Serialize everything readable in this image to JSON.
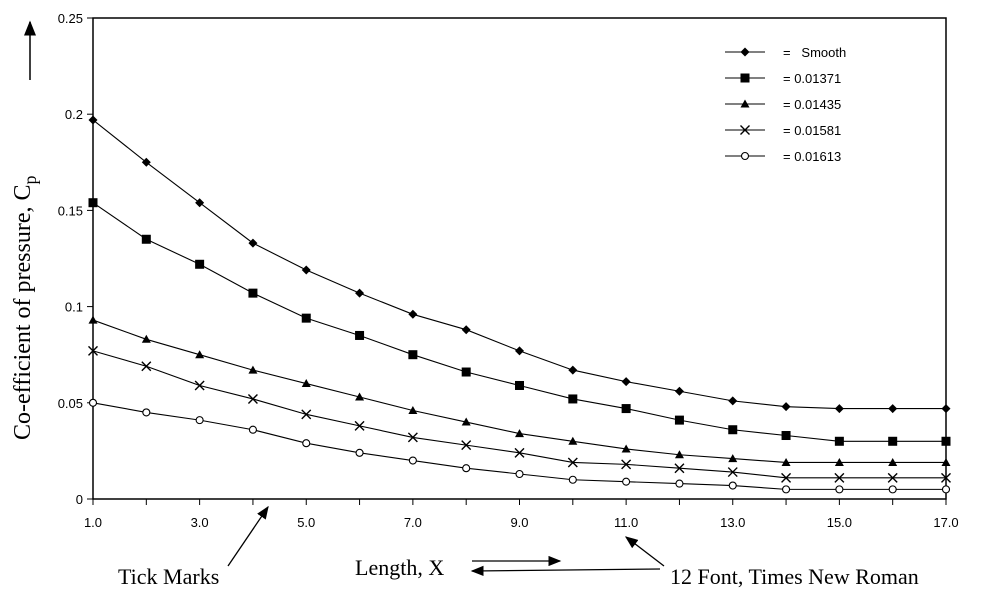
{
  "chart_data": {
    "type": "line",
    "ylabel": "Co-efficient of pressure, C",
    "ylabel_subscript": "p",
    "xlabel": "Length, X",
    "xlim": [
      1,
      17
    ],
    "ylim": [
      0,
      0.25
    ],
    "x_ticks": [
      "1.0",
      "3.0",
      "5.0",
      "7.0",
      "9.0",
      "11.0",
      "13.0",
      "15.0",
      "17.0"
    ],
    "y_ticks": [
      "0",
      "0.05",
      "0.1",
      "0.15",
      "0.2",
      "0.25"
    ],
    "grid": false,
    "legend_position": "top-right",
    "x": [
      1,
      2,
      3,
      4,
      5,
      6,
      7,
      8,
      9,
      10,
      11,
      12,
      13,
      14,
      15,
      16,
      17
    ],
    "series": [
      {
        "name": "=   Smooth",
        "marker": "diamond",
        "values": [
          0.197,
          0.175,
          0.154,
          0.133,
          0.119,
          0.107,
          0.096,
          0.088,
          0.077,
          0.067,
          0.061,
          0.056,
          0.051,
          0.048,
          0.047,
          0.047,
          0.047
        ]
      },
      {
        "name": "= 0.01371",
        "marker": "square",
        "values": [
          0.154,
          0.135,
          0.122,
          0.107,
          0.094,
          0.085,
          0.075,
          0.066,
          0.059,
          0.052,
          0.047,
          0.041,
          0.036,
          0.033,
          0.03,
          0.03,
          0.03
        ]
      },
      {
        "name": "= 0.01435",
        "marker": "triangle",
        "values": [
          0.093,
          0.083,
          0.075,
          0.067,
          0.06,
          0.053,
          0.046,
          0.04,
          0.034,
          0.03,
          0.026,
          0.023,
          0.021,
          0.019,
          0.019,
          0.019,
          0.019
        ]
      },
      {
        "name": "= 0.01581",
        "marker": "x",
        "values": [
          0.077,
          0.069,
          0.059,
          0.052,
          0.044,
          0.038,
          0.032,
          0.028,
          0.024,
          0.019,
          0.018,
          0.016,
          0.014,
          0.011,
          0.011,
          0.011,
          0.011
        ]
      },
      {
        "name": "= 0.01613",
        "marker": "circle",
        "values": [
          0.05,
          0.045,
          0.041,
          0.036,
          0.029,
          0.024,
          0.02,
          0.016,
          0.013,
          0.01,
          0.009,
          0.008,
          0.007,
          0.005,
          0.005,
          0.005,
          0.005
        ]
      }
    ],
    "annotations": {
      "tick_marks": "Tick Marks",
      "font_note": "12 Font, Times New Roman"
    }
  }
}
